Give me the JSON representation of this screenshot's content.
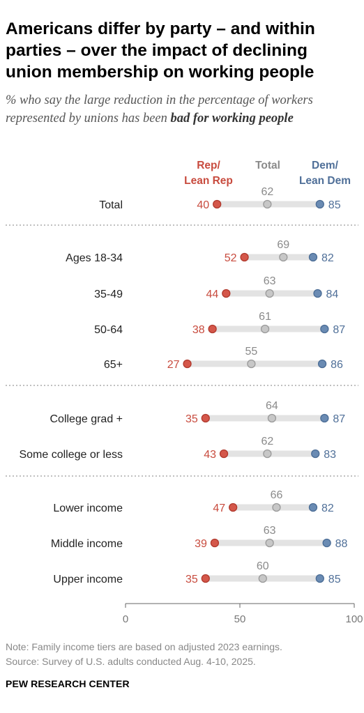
{
  "title": "Americans differ by party – and within parties – over the impact of declining union membership on working people",
  "subtitle": {
    "text": "% who say the large reduction in the percentage of workers represented by unions has been ",
    "emphasis": "bad for working people"
  },
  "legend": {
    "rep_line1": "Rep/",
    "rep_line2": "Lean Rep",
    "total": "Total",
    "dem_line1": "Dem/",
    "dem_line2": "Lean Dem"
  },
  "colors": {
    "rep": "#d4574a",
    "total": "#c7c7c7",
    "dem": "#6a8bb3",
    "rep_text": "#c84b3e",
    "total_text": "#8a8a8a",
    "dem_text": "#4f6f98",
    "range_bar": "#e3e3e3"
  },
  "chart_data": {
    "type": "dot_plot",
    "xlim": [
      0,
      100
    ],
    "x_ticks": [
      0,
      50,
      100
    ],
    "series": [
      {
        "key": "rep",
        "name": "Rep/Lean Rep"
      },
      {
        "key": "total",
        "name": "Total"
      },
      {
        "key": "dem",
        "name": "Dem/Lean Dem"
      }
    ],
    "rows": [
      {
        "label": "Total",
        "rep": 40,
        "total": 62,
        "dem": 85,
        "group": 0
      },
      {
        "label": "Ages 18-34",
        "rep": 52,
        "total": 69,
        "dem": 82,
        "group": 1
      },
      {
        "label": "35-49",
        "rep": 44,
        "total": 63,
        "dem": 84,
        "group": 1
      },
      {
        "label": "50-64",
        "rep": 38,
        "total": 61,
        "dem": 87,
        "group": 1
      },
      {
        "label": "65+",
        "rep": 27,
        "total": 55,
        "dem": 86,
        "group": 1
      },
      {
        "label": "College grad +",
        "rep": 35,
        "total": 64,
        "dem": 87,
        "group": 2
      },
      {
        "label": "Some college or less",
        "rep": 43,
        "total": 62,
        "dem": 83,
        "group": 2
      },
      {
        "label": "Lower income",
        "rep": 47,
        "total": 66,
        "dem": 82,
        "group": 3
      },
      {
        "label": "Middle income",
        "rep": 39,
        "total": 63,
        "dem": 88,
        "group": 3
      },
      {
        "label": "Upper income",
        "rep": 35,
        "total": 60,
        "dem": 85,
        "group": 3
      }
    ]
  },
  "note": "Note: Family income tiers are based on adjusted 2023 earnings.",
  "source": "Source: Survey of U.S. adults conducted Aug. 4-10, 2025.",
  "brand": "PEW RESEARCH CENTER"
}
